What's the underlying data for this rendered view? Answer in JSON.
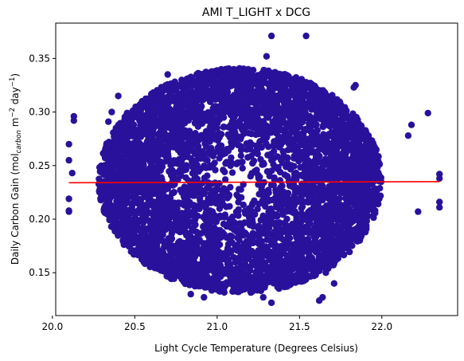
{
  "chart_data": {
    "type": "scatter",
    "title": "AMI T_LIGHT x DCG",
    "xlabel": "Light Cycle Temperature (Degrees Celsius)",
    "ylabel": {
      "prefix": "Daily Carbon Gain (mol",
      "subscript": "carbon",
      "middle": " m",
      "sup1": "−2",
      "middle2": " day",
      "sup2": "−1",
      "suffix": ")"
    },
    "xlim": [
      20.02,
      22.46
    ],
    "ylim": [
      0.11,
      0.383
    ],
    "xticks": [
      {
        "value": 20.0,
        "label": "20.0"
      },
      {
        "value": 20.5,
        "label": "20.5"
      },
      {
        "value": 21.0,
        "label": "21.0"
      },
      {
        "value": 21.5,
        "label": "21.5"
      },
      {
        "value": 22.0,
        "label": "22.0"
      }
    ],
    "yticks": [
      {
        "value": 0.15,
        "label": "0.15"
      },
      {
        "value": 0.2,
        "label": "0.20"
      },
      {
        "value": 0.25,
        "label": "0.25"
      },
      {
        "value": 0.3,
        "label": "0.30"
      },
      {
        "value": 0.35,
        "label": "0.35"
      }
    ],
    "grid": false,
    "series": [
      {
        "kind": "points",
        "color": "#2a119b",
        "cloud": {
          "center": [
            21.14,
            0.236
          ],
          "half_width": [
            0.86,
            0.105
          ],
          "approx_count": 5000
        },
        "outliers": [
          [
            20.1,
            0.27
          ],
          [
            20.1,
            0.255
          ],
          [
            20.1,
            0.219
          ],
          [
            20.1,
            0.208
          ],
          [
            20.1,
            0.207
          ],
          [
            20.13,
            0.296
          ],
          [
            20.13,
            0.292
          ],
          [
            20.12,
            0.243
          ],
          [
            20.34,
            0.291
          ],
          [
            20.36,
            0.3
          ],
          [
            20.4,
            0.315
          ],
          [
            21.33,
            0.371
          ],
          [
            21.54,
            0.371
          ],
          [
            21.3,
            0.352
          ],
          [
            21.28,
            0.127
          ],
          [
            20.92,
            0.127
          ],
          [
            21.33,
            0.122
          ],
          [
            21.62,
            0.124
          ],
          [
            21.64,
            0.127
          ],
          [
            22.28,
            0.299
          ],
          [
            22.35,
            0.242
          ],
          [
            22.35,
            0.238
          ],
          [
            22.35,
            0.216
          ],
          [
            22.35,
            0.211
          ],
          [
            22.18,
            0.288
          ],
          [
            22.16,
            0.278
          ],
          [
            22.22,
            0.207
          ],
          [
            21.84,
            0.325
          ],
          [
            21.83,
            0.323
          ],
          [
            20.7,
            0.335
          ],
          [
            21.66,
            0.15
          ],
          [
            21.71,
            0.14
          ],
          [
            20.84,
            0.13
          ]
        ]
      },
      {
        "kind": "fit-line",
        "color": "#ff0000",
        "x": [
          20.1,
          22.35
        ],
        "y": [
          0.234,
          0.235
        ]
      }
    ]
  }
}
